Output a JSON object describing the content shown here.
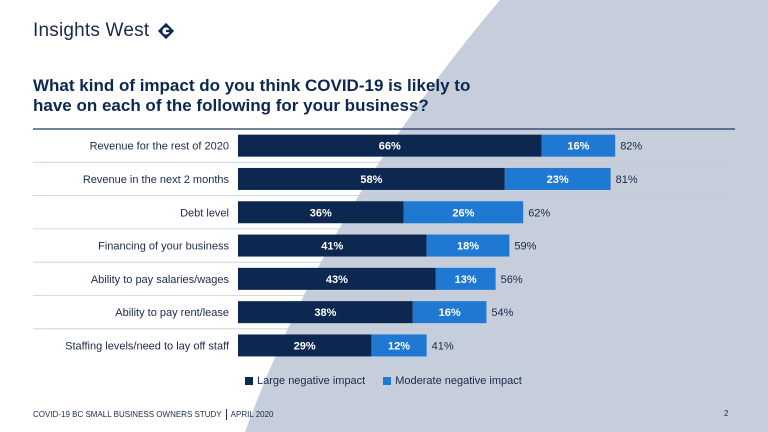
{
  "brand": {
    "name": "Insights West"
  },
  "title": "What kind of impact do you think COVID-19 is likely to have on each of the following for your business?",
  "footer": {
    "study": "COVID-19 BC SMALL BUSINESS OWNERS STUDY",
    "date": "APRIL 2020",
    "page": "2"
  },
  "colors": {
    "large": "#0c2850",
    "moderate": "#1f78d1",
    "divider": "#1f3a5f",
    "separator": "#c6ccd6",
    "bg_shape": "#c5ceda"
  },
  "chart_data": {
    "type": "bar",
    "orientation": "horizontal",
    "stacked": true,
    "title": "What kind of impact do you think COVID-19 is likely to have on each of the following for your business?",
    "categories": [
      "Revenue for the rest of 2020",
      "Revenue in the next 2 months",
      "Debt level",
      "Financing of your business",
      "Ability to pay salaries/wages",
      "Ability to pay rent/lease",
      "Staffing levels/need to lay off staff"
    ],
    "series": [
      {
        "name": "Large negative impact",
        "values": [
          66,
          58,
          36,
          41,
          43,
          38,
          29
        ]
      },
      {
        "name": "Moderate negative impact",
        "values": [
          16,
          23,
          26,
          18,
          13,
          16,
          12
        ]
      }
    ],
    "totals": [
      82,
      81,
      62,
      59,
      56,
      54,
      41
    ],
    "unit": "%",
    "xlim": [
      0,
      100
    ],
    "legend": "bottom"
  }
}
